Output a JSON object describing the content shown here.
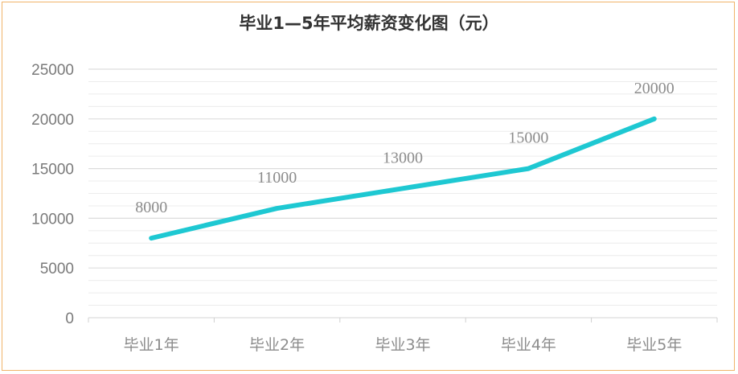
{
  "chart_data": {
    "type": "line",
    "title": "毕业1—5年平均薪资变化图（元）",
    "categories": [
      "毕业1年",
      "毕业2年",
      "毕业3年",
      "毕业4年",
      "毕业5年"
    ],
    "series": [
      {
        "values": [
          8000,
          11000,
          13000,
          15000,
          20000
        ]
      }
    ],
    "data_labels": [
      "8000",
      "11000",
      "13000",
      "15000",
      "20000"
    ],
    "y_ticks": [
      0,
      5000,
      10000,
      15000,
      20000,
      25000
    ],
    "ylim": [
      0,
      25000
    ],
    "grid": true,
    "legend": "none",
    "colors": {
      "line": "#1ec8d2",
      "grid": "#e3e3e3",
      "frame": "#f0b46a"
    }
  }
}
